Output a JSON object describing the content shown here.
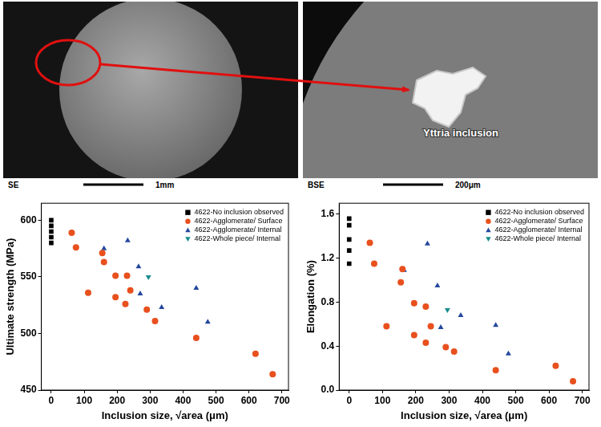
{
  "micrographs": [
    {
      "detector": "SE",
      "scale_bar": "1mm"
    },
    {
      "detector": "BSE",
      "scale_bar": "200μm",
      "annotation": "Yttria inclusion"
    }
  ],
  "chart_data": [
    {
      "type": "scatter",
      "x_label": "Inclusion size, √area (μm)",
      "y_label": "Ultimate strength (MPa)",
      "xlim": [
        -30,
        720
      ],
      "xticks": [
        0,
        100,
        200,
        300,
        400,
        500,
        600,
        700
      ],
      "ylim": [
        450,
        615
      ],
      "yticks": [
        450,
        500,
        550,
        600
      ],
      "grid": false,
      "legend": "top right",
      "series": [
        {
          "name": "4622-No inclusion observed",
          "color": "#000000",
          "marker": "square",
          "x": [
            0,
            0,
            0,
            0,
            0
          ],
          "values": [
            600,
            595,
            590,
            585,
            580
          ]
        },
        {
          "name": "4622-Agglomerate/ Surface",
          "color": "#e8501e",
          "marker": "circle",
          "x": [
            62,
            75,
            112,
            155,
            160,
            195,
            195,
            225,
            230,
            240,
            290,
            315,
            440,
            620,
            672
          ],
          "values": [
            589,
            576,
            536,
            571,
            563,
            551,
            532,
            526,
            551,
            538,
            521,
            511,
            496,
            482,
            464
          ]
        },
        {
          "name": "4622-Agglomerate/ Internal",
          "color": "#23479c",
          "marker": "triangle",
          "x": [
            160,
            232,
            265,
            270,
            335,
            440,
            475
          ],
          "values": [
            575,
            582,
            559,
            535,
            523,
            540,
            510
          ]
        },
        {
          "name": "4622-Whole piece/ Internal",
          "color": "#178c8c",
          "marker": "triangle_down",
          "x": [
            295
          ],
          "values": [
            550
          ]
        }
      ]
    },
    {
      "type": "scatter",
      "x_label": "Inclusion size, √area (μm)",
      "y_label": "Elongation (%)",
      "xlim": [
        -30,
        720
      ],
      "xticks": [
        0,
        100,
        200,
        300,
        400,
        500,
        600,
        700
      ],
      "ylim": [
        0,
        1.7
      ],
      "yticks": [
        {
          "value": 0,
          "label": "0.0"
        },
        0.4,
        0.8,
        1.2,
        1.6
      ],
      "grid": false,
      "legend": "top right",
      "series": [
        {
          "name": "4622-No inclusion observed",
          "color": "#000000",
          "marker": "square",
          "x": [
            0,
            0,
            0,
            0,
            0
          ],
          "values": [
            1.56,
            1.5,
            1.37,
            1.27,
            1.15
          ]
        },
        {
          "name": "4622-Agglomerate/ Surface",
          "color": "#e8501e",
          "marker": "circle",
          "x": [
            62,
            75,
            112,
            155,
            160,
            195,
            195,
            230,
            230,
            245,
            290,
            315,
            440,
            620,
            672
          ],
          "values": [
            1.34,
            1.15,
            0.58,
            0.98,
            1.1,
            0.79,
            0.5,
            0.43,
            0.76,
            0.58,
            0.39,
            0.35,
            0.18,
            0.22,
            0.08
          ]
        },
        {
          "name": "4622-Agglomerate/ Internal",
          "color": "#23479c",
          "marker": "triangle",
          "x": [
            165,
            235,
            265,
            275,
            335,
            440,
            478
          ],
          "values": [
            1.09,
            1.33,
            0.95,
            0.57,
            0.68,
            0.59,
            0.33
          ]
        },
        {
          "name": "4622-Whole piece/ Internal",
          "color": "#178c8c",
          "marker": "triangle_down",
          "x": [
            295
          ],
          "values": [
            0.73
          ]
        }
      ]
    }
  ]
}
